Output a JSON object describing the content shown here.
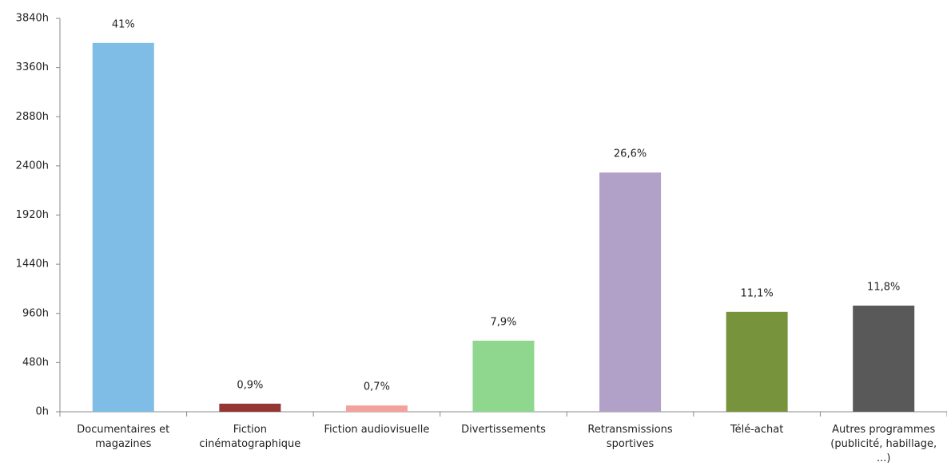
{
  "chart_data": {
    "type": "bar",
    "categories": [
      "Documentaires et magazines",
      "Fiction cinématographique",
      "Fiction audiovisuelle",
      "Divertissements",
      "Retransmissions sportives",
      "Télé-achat",
      "Autres programmes (publicité, habillage, ...)"
    ],
    "values": [
      3600,
      79,
      61,
      694,
      2335,
      975,
      1036
    ],
    "data_labels": [
      "41%",
      "0,9%",
      "0,7%",
      "7,9%",
      "26,6%",
      "11,1%",
      "11,8%"
    ],
    "colors": [
      "#7fbde7",
      "#943634",
      "#f4a09c",
      "#8fd68f",
      "#b1a0c7",
      "#77933c",
      "#595959"
    ],
    "ylim": [
      0,
      3840
    ],
    "yticks": [
      {
        "value": 0,
        "label": "0h"
      },
      {
        "value": 480,
        "label": "480h"
      },
      {
        "value": 960,
        "label": "960h"
      },
      {
        "value": 1440,
        "label": "1440h"
      },
      {
        "value": 1920,
        "label": "1920h"
      },
      {
        "value": 2400,
        "label": "2400h"
      },
      {
        "value": 2880,
        "label": "2880h"
      },
      {
        "value": 3360,
        "label": "3360h"
      },
      {
        "value": 3840,
        "label": "3840h"
      }
    ]
  }
}
